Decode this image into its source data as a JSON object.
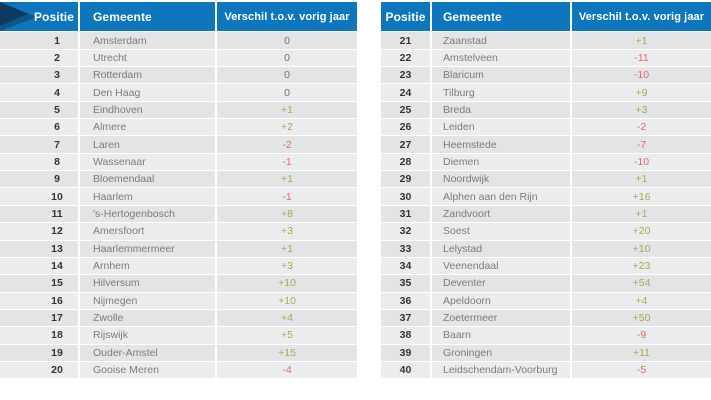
{
  "colors": {
    "header_blue": "#0d76bc",
    "corner_dark": "#0e3a5f",
    "corner_mid": "#11568a",
    "positive_green": "#a4ab50",
    "negative_red": "#e26966",
    "zero_gray": "#6e7073"
  },
  "tables": [
    {
      "headers": {
        "position": "Positie",
        "municipality": "Gemeente",
        "difference": "Verschil t.o.v. vorig jaar"
      },
      "rows": [
        {
          "position": "1",
          "municipality": "Amsterdam",
          "difference": "0"
        },
        {
          "position": "2",
          "municipality": "Utrecht",
          "difference": "0"
        },
        {
          "position": "3",
          "municipality": "Rotterdam",
          "difference": "0"
        },
        {
          "position": "4",
          "municipality": "Den Haag",
          "difference": "0"
        },
        {
          "position": "5",
          "municipality": "Eindhoven",
          "difference": "+1"
        },
        {
          "position": "6",
          "municipality": "Almere",
          "difference": "+2"
        },
        {
          "position": "7",
          "municipality": "Laren",
          "difference": "-2"
        },
        {
          "position": "8",
          "municipality": "Wassenaar",
          "difference": "-1"
        },
        {
          "position": "9",
          "municipality": "Bloemendaal",
          "difference": "+1"
        },
        {
          "position": "10",
          "municipality": "Haarlem",
          "difference": "-1"
        },
        {
          "position": "11",
          "municipality": "'s-Hertogenbosch",
          "difference": "+8"
        },
        {
          "position": "12",
          "municipality": "Amersfoort",
          "difference": "+3"
        },
        {
          "position": "13",
          "municipality": "Haarlemmermeer",
          "difference": "+1"
        },
        {
          "position": "14",
          "municipality": "Arnhem",
          "difference": "+3"
        },
        {
          "position": "15",
          "municipality": "Hilversum",
          "difference": "+10"
        },
        {
          "position": "16",
          "municipality": "Nijmegen",
          "difference": "+10"
        },
        {
          "position": "17",
          "municipality": "Zwolle",
          "difference": "+4"
        },
        {
          "position": "18",
          "municipality": "Rijswijk",
          "difference": "+5"
        },
        {
          "position": "19",
          "municipality": "Ouder-Amstel",
          "difference": "+15"
        },
        {
          "position": "20",
          "municipality": "Gooise Meren",
          "difference": "-4"
        }
      ]
    },
    {
      "headers": {
        "position": "Positie",
        "municipality": "Gemeente",
        "difference": "Verschil t.o.v. vorig jaar"
      },
      "rows": [
        {
          "position": "21",
          "municipality": "Zaanstad",
          "difference": "+1"
        },
        {
          "position": "22",
          "municipality": "Amstelveen",
          "difference": "-11"
        },
        {
          "position": "23",
          "municipality": "Blaricum",
          "difference": "-10"
        },
        {
          "position": "24",
          "municipality": "Tilburg",
          "difference": "+9"
        },
        {
          "position": "25",
          "municipality": "Breda",
          "difference": "+3"
        },
        {
          "position": "26",
          "municipality": "Leiden",
          "difference": "-2"
        },
        {
          "position": "27",
          "municipality": "Heemstede",
          "difference": "-7"
        },
        {
          "position": "28",
          "municipality": "Diemen",
          "difference": "-10"
        },
        {
          "position": "29",
          "municipality": "Noordwijk",
          "difference": "+1"
        },
        {
          "position": "30",
          "municipality": "Alphen aan den Rijn",
          "difference": "+16"
        },
        {
          "position": "31",
          "municipality": "Zandvoort",
          "difference": "+1"
        },
        {
          "position": "32",
          "municipality": "Soest",
          "difference": "+20"
        },
        {
          "position": "33",
          "municipality": "Lelystad",
          "difference": "+10"
        },
        {
          "position": "34",
          "municipality": "Veenendaal",
          "difference": "+23"
        },
        {
          "position": "35",
          "municipality": "Deventer",
          "difference": "+54"
        },
        {
          "position": "36",
          "municipality": "Apeldoorn",
          "difference": "+4"
        },
        {
          "position": "37",
          "municipality": "Zoetermeer",
          "difference": "+50"
        },
        {
          "position": "38",
          "municipality": "Baarn",
          "difference": "-9"
        },
        {
          "position": "39",
          "municipality": "Groningen",
          "difference": "+11"
        },
        {
          "position": "40",
          "municipality": "Leidschendam-Voorburg",
          "difference": "-5"
        }
      ]
    }
  ]
}
